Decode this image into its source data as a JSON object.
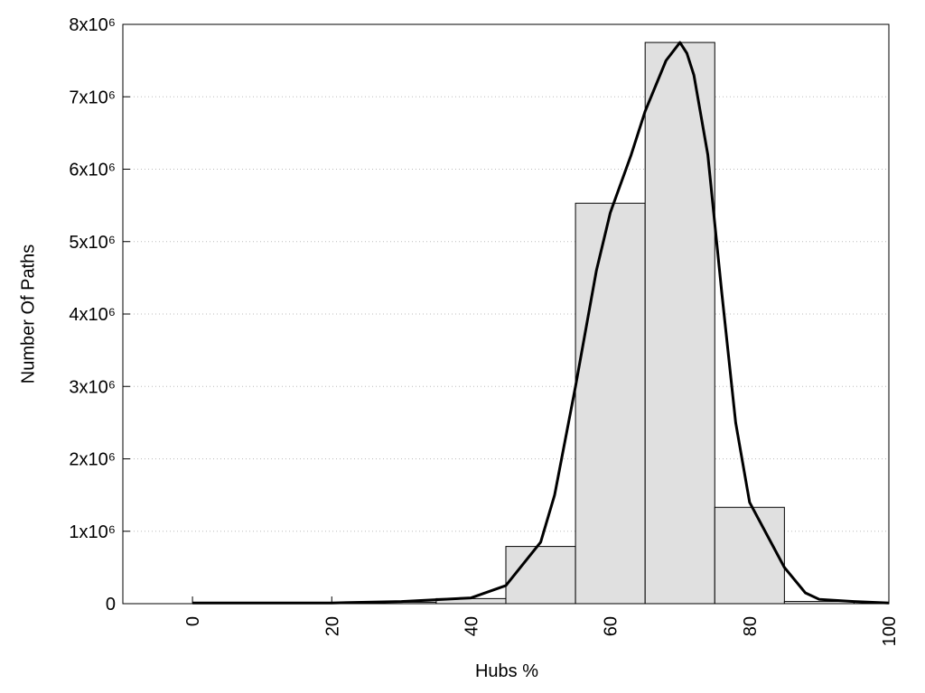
{
  "chart_data": {
    "type": "histogram",
    "xlabel": "Hubs %",
    "ylabel": "Number Of Paths",
    "bins": [
      -5,
      5,
      15,
      25,
      35,
      45,
      55,
      65,
      75,
      85,
      95
    ],
    "values": [
      0,
      0,
      5000,
      20000,
      70000,
      790000,
      5530000,
      7750000,
      1330000,
      30000
    ],
    "color": "#e0e0e0",
    "curve": {
      "type": "line",
      "color": "#000000",
      "x": [
        0,
        20,
        30,
        40,
        45,
        50,
        52,
        55,
        58,
        60,
        63,
        65,
        68,
        70,
        71,
        72,
        74,
        76,
        78,
        80,
        85,
        88,
        90,
        95,
        100
      ],
      "values": [
        10000,
        10000,
        30000,
        80000,
        250000,
        850000,
        1500000,
        3000000,
        4600000,
        5400000,
        6200000,
        6800000,
        7500000,
        7750000,
        7600000,
        7300000,
        6200000,
        4300000,
        2500000,
        1400000,
        500000,
        150000,
        60000,
        30000,
        10000
      ]
    },
    "xlim": [
      -10,
      100
    ],
    "xticks": [
      0,
      20,
      40,
      60,
      80,
      100
    ],
    "ylim": [
      0,
      8000000
    ],
    "yticks": [
      0,
      {
        "value": 1000000,
        "label": "1x10⁶"
      },
      {
        "value": 2000000,
        "label": "2x10⁶"
      },
      {
        "value": 3000000,
        "label": "3x10⁶"
      },
      {
        "value": 4000000,
        "label": "4x10⁶"
      },
      {
        "value": 5000000,
        "label": "5x10⁶"
      },
      {
        "value": 6000000,
        "label": "6x10⁶"
      },
      {
        "value": 7000000,
        "label": "7x10⁶"
      },
      {
        "value": 8000000,
        "label": "8x10⁶"
      }
    ],
    "grid": true
  }
}
